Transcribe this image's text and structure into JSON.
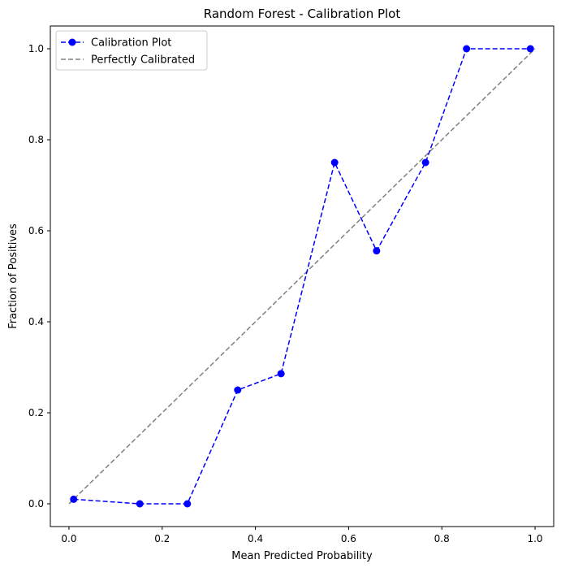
{
  "chart_data": {
    "type": "line",
    "title": "Random Forest - Calibration Plot",
    "xlabel": "Mean Predicted Probability",
    "ylabel": "Fraction of Positives",
    "xlim": [
      -0.04,
      1.04
    ],
    "ylim": [
      -0.05,
      1.05
    ],
    "xticks": [
      0.0,
      0.2,
      0.4,
      0.6,
      0.8,
      1.0
    ],
    "xtick_labels": [
      "0.0",
      "0.2",
      "0.4",
      "0.6",
      "0.8",
      "1.0"
    ],
    "yticks": [
      0.0,
      0.2,
      0.4,
      0.6,
      0.8,
      1.0
    ],
    "ytick_labels": [
      "0.0",
      "0.2",
      "0.4",
      "0.6",
      "0.8",
      "1.0"
    ],
    "grid": false,
    "legend_position": "top-left",
    "series": [
      {
        "name": "Calibration Plot",
        "color": "#0000ff",
        "line_style": "dashed",
        "marker": "circle",
        "x": [
          0.01,
          0.152,
          0.254,
          0.362,
          0.455,
          0.57,
          0.66,
          0.765,
          0.853,
          0.99
        ],
        "y": [
          0.01,
          0.0,
          0.0,
          0.25,
          0.286,
          0.75,
          0.556,
          0.75,
          1.0,
          1.0
        ]
      },
      {
        "name": "Perfectly Calibrated",
        "color": "#808080",
        "line_style": "dashed",
        "marker": "none",
        "x": [
          0.0,
          1.0
        ],
        "y": [
          0.0,
          1.0
        ]
      }
    ]
  }
}
